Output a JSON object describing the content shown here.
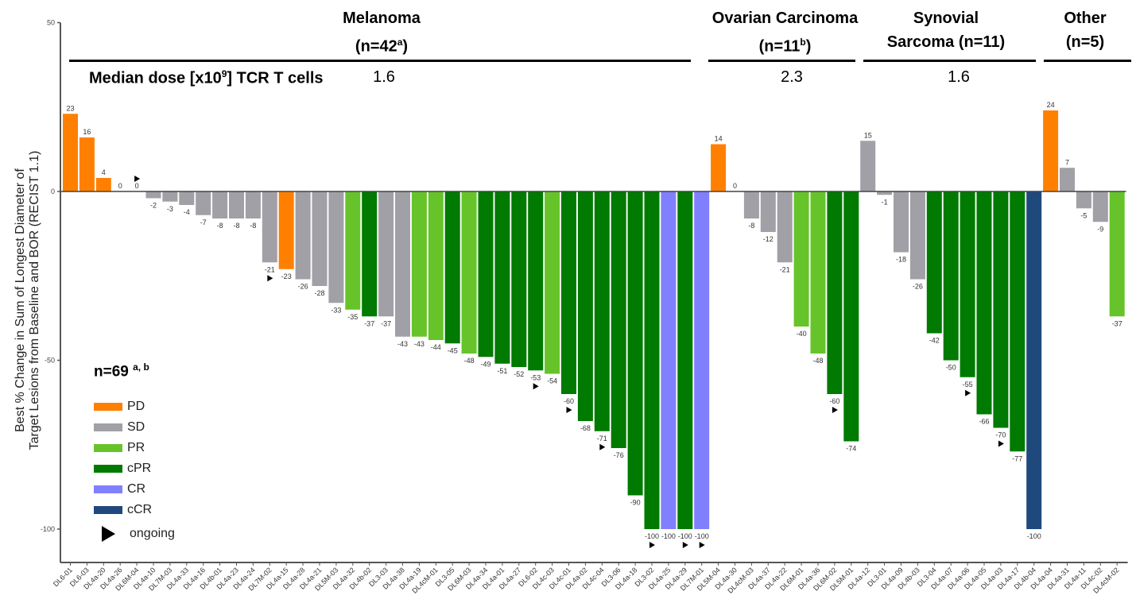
{
  "chart_data": {
    "type": "bar",
    "title": "",
    "ylabel_lines": [
      "Best % Change in Sum of Longest Diameter of",
      "Target Lesions from Baseline and BOR (RECIST 1.1)"
    ],
    "xlabel": "",
    "ylim": [
      -110,
      50
    ],
    "yticks": [
      50,
      0,
      -50,
      -100
    ],
    "grid": false,
    "legend_placement": "bottom-left",
    "n_label": "n=69",
    "n_label_sup": "a, b",
    "median_dose_label": "Median dose [x10",
    "median_dose_label_sup": "9",
    "median_dose_label_end": "] TCR T cells",
    "colors": {
      "PD": "#ff8000",
      "SD": "#a0a0a6",
      "PR": "#66c42a",
      "cPR": "#007a00",
      "CR": "#8080ff",
      "cCR": "#1f497d"
    },
    "legend": [
      {
        "key": "PD",
        "label": "PD"
      },
      {
        "key": "SD",
        "label": "SD"
      },
      {
        "key": "PR",
        "label": "PR"
      },
      {
        "key": "cPR",
        "label": "cPR"
      },
      {
        "key": "CR",
        "label": "CR"
      },
      {
        "key": "cCR",
        "label": "cCR"
      }
    ],
    "ongoing_label": "ongoing",
    "groups": [
      {
        "name": "Melanoma",
        "n_text": "(n=42",
        "n_sup": "a",
        "n_end": ")",
        "median_dose": "1.6",
        "start": 0,
        "end": 38
      },
      {
        "name": "Ovarian Carcinoma",
        "n_text": "(n=11",
        "n_sup": "b",
        "n_end": ")",
        "median_dose": "2.3",
        "start": 39,
        "end": 47
      },
      {
        "name": "Synovial",
        "n_text": "Sarcoma (n=11)",
        "n_sup": "",
        "n_end": "",
        "median_dose": "1.6",
        "start": 48,
        "end": 58
      },
      {
        "name": "Other",
        "n_text": "(n=5)",
        "n_sup": "",
        "n_end": "",
        "median_dose": "",
        "start": 59,
        "end": 63
      }
    ],
    "bars": [
      {
        "id": "DL6-01",
        "value": 23,
        "bor": "PD",
        "ongoing": false
      },
      {
        "id": "DL6-03",
        "value": 16,
        "bor": "PD",
        "ongoing": false
      },
      {
        "id": "DL4a-20",
        "value": 4,
        "bor": "PD",
        "ongoing": false
      },
      {
        "id": "DL4a-26",
        "value": 0,
        "bor": "SD",
        "ongoing": false
      },
      {
        "id": "DL6M-04",
        "value": 0,
        "bor": "SD",
        "ongoing": true
      },
      {
        "id": "DL4a-10",
        "value": -2,
        "bor": "SD",
        "ongoing": false
      },
      {
        "id": "DL7M-03",
        "value": -3,
        "bor": "SD",
        "ongoing": false
      },
      {
        "id": "DL4a-33",
        "value": -4,
        "bor": "SD",
        "ongoing": false
      },
      {
        "id": "DL4a-16",
        "value": -7,
        "bor": "SD",
        "ongoing": false
      },
      {
        "id": "DL4b-01",
        "value": -8,
        "bor": "SD",
        "ongoing": false
      },
      {
        "id": "DL4a-23",
        "value": -8,
        "bor": "SD",
        "ongoing": false
      },
      {
        "id": "DL4a-24",
        "value": -8,
        "bor": "SD",
        "ongoing": false
      },
      {
        "id": "DL7M-02",
        "value": -21,
        "bor": "SD",
        "ongoing": true
      },
      {
        "id": "DL4a-15",
        "value": -23,
        "bor": "PD",
        "ongoing": false
      },
      {
        "id": "DL4a-28",
        "value": -26,
        "bor": "SD",
        "ongoing": false
      },
      {
        "id": "DL4a-21",
        "value": -28,
        "bor": "SD",
        "ongoing": false
      },
      {
        "id": "DL5M-03",
        "value": -33,
        "bor": "SD",
        "ongoing": false
      },
      {
        "id": "DL4a-32",
        "value": -35,
        "bor": "PR",
        "ongoing": false
      },
      {
        "id": "DL4b-02",
        "value": -37,
        "bor": "cPR",
        "ongoing": false
      },
      {
        "id": "DL3-03",
        "value": -37,
        "bor": "SD",
        "ongoing": false
      },
      {
        "id": "DL4a-38",
        "value": -43,
        "bor": "SD",
        "ongoing": false
      },
      {
        "id": "DL4a-19",
        "value": -43,
        "bor": "PR",
        "ongoing": false
      },
      {
        "id": "DL4cM-01",
        "value": -44,
        "bor": "PR",
        "ongoing": false
      },
      {
        "id": "DL3-05",
        "value": -45,
        "bor": "cPR",
        "ongoing": false
      },
      {
        "id": "DL6M-03",
        "value": -48,
        "bor": "PR",
        "ongoing": false
      },
      {
        "id": "DL4a-34",
        "value": -49,
        "bor": "cPR",
        "ongoing": false
      },
      {
        "id": "DL4a-01",
        "value": -51,
        "bor": "cPR",
        "ongoing": false
      },
      {
        "id": "DL4a-27",
        "value": -52,
        "bor": "cPR",
        "ongoing": false
      },
      {
        "id": "DL6-02",
        "value": -53,
        "bor": "cPR",
        "ongoing": true
      },
      {
        "id": "DL4c-03",
        "value": -54,
        "bor": "PR",
        "ongoing": false
      },
      {
        "id": "DL4c-01",
        "value": -60,
        "bor": "cPR",
        "ongoing": true
      },
      {
        "id": "DL4a-02",
        "value": -68,
        "bor": "cPR",
        "ongoing": false
      },
      {
        "id": "DL4c-04",
        "value": -71,
        "bor": "cPR",
        "ongoing": true
      },
      {
        "id": "DL3-06",
        "value": -76,
        "bor": "cPR",
        "ongoing": false
      },
      {
        "id": "DL4a-18",
        "value": -90,
        "bor": "cPR",
        "ongoing": false
      },
      {
        "id": "DL3-02",
        "value": -100,
        "bor": "cPR",
        "ongoing": true
      },
      {
        "id": "DL4a-25",
        "value": -100,
        "bor": "CR",
        "ongoing": false
      },
      {
        "id": "DL4a-29",
        "value": -100,
        "bor": "cPR",
        "ongoing": true
      },
      {
        "id": "DL7M-01",
        "value": -100,
        "bor": "CR",
        "ongoing": true
      },
      {
        "id": "DL5M-04",
        "value": 14,
        "bor": "PD",
        "ongoing": false
      },
      {
        "id": "DL4a-30",
        "value": 0,
        "bor": "SD",
        "ongoing": false
      },
      {
        "id": "DL4cM-03",
        "value": -8,
        "bor": "SD",
        "ongoing": false
      },
      {
        "id": "DL4a-37",
        "value": -12,
        "bor": "SD",
        "ongoing": false
      },
      {
        "id": "DL4a-22",
        "value": -21,
        "bor": "SD",
        "ongoing": false
      },
      {
        "id": "DL6M-01",
        "value": -40,
        "bor": "PR",
        "ongoing": false
      },
      {
        "id": "DL4a-36",
        "value": -48,
        "bor": "PR",
        "ongoing": false
      },
      {
        "id": "DL6M-02",
        "value": -60,
        "bor": "cPR",
        "ongoing": true
      },
      {
        "id": "DL5M-01",
        "value": -74,
        "bor": "cPR",
        "ongoing": false
      },
      {
        "id": "DL4a-12",
        "value": 15,
        "bor": "SD",
        "ongoing": false
      },
      {
        "id": "DL3-01",
        "value": -1,
        "bor": "SD",
        "ongoing": false
      },
      {
        "id": "DL4a-09",
        "value": -18,
        "bor": "SD",
        "ongoing": false
      },
      {
        "id": "DL4b-03",
        "value": -26,
        "bor": "SD",
        "ongoing": false
      },
      {
        "id": "DL3-04",
        "value": -42,
        "bor": "cPR",
        "ongoing": false
      },
      {
        "id": "DL4a-07",
        "value": -50,
        "bor": "cPR",
        "ongoing": false
      },
      {
        "id": "DL4a-06",
        "value": -55,
        "bor": "cPR",
        "ongoing": true
      },
      {
        "id": "DL4a-05",
        "value": -66,
        "bor": "cPR",
        "ongoing": false
      },
      {
        "id": "DL4a-03",
        "value": -70,
        "bor": "cPR",
        "ongoing": true
      },
      {
        "id": "DL4a-17",
        "value": -77,
        "bor": "cPR",
        "ongoing": false
      },
      {
        "id": "DL4b-04",
        "value": -100,
        "bor": "cCR",
        "ongoing": false
      },
      {
        "id": "DL4a-04",
        "value": 24,
        "bor": "PD",
        "ongoing": false
      },
      {
        "id": "DL4a-31",
        "value": 7,
        "bor": "SD",
        "ongoing": false
      },
      {
        "id": "DL4a-11",
        "value": -5,
        "bor": "SD",
        "ongoing": false
      },
      {
        "id": "DL4c-02",
        "value": -9,
        "bor": "SD",
        "ongoing": false
      },
      {
        "id": "DL4cM-02",
        "value": -37,
        "bor": "PR",
        "ongoing": false
      }
    ]
  }
}
